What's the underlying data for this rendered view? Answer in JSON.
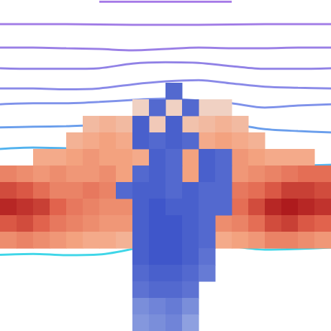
{
  "chart_data": {
    "type": "contour",
    "tick_labels": false,
    "grid": false,
    "xlim": [
      0,
      100
    ],
    "ylim": [
      0,
      100
    ],
    "x": [
      0,
      10,
      20,
      30,
      40,
      50,
      60,
      70,
      80,
      90,
      100
    ],
    "series": [
      {
        "color": "#a77ce8",
        "values": [
          null,
          null,
          null,
          99.5,
          99.5,
          99.5,
          99.5,
          99.5,
          null,
          null,
          null
        ]
      },
      {
        "color": "#a17ce6",
        "values": [
          92.7,
          92.7,
          92.7,
          92.6,
          92.5,
          92.5,
          92.5,
          92.6,
          92.7,
          92.7,
          92.7
        ]
      },
      {
        "color": "#9a7fe6",
        "values": [
          85.6,
          85.6,
          85.4,
          85.2,
          84.8,
          85.2,
          85.6,
          85.4,
          85.4,
          85.6,
          85.6
        ]
      },
      {
        "color": "#9182e6",
        "values": [
          79.4,
          79.2,
          79.2,
          79.4,
          80.8,
          81.2,
          81.0,
          80.0,
          79.2,
          79.2,
          79.4
        ]
      },
      {
        "color": "#8a8ae8",
        "values": [
          73.3,
          73.3,
          73.0,
          73.3,
          74.5,
          75.4,
          75.8,
          74.8,
          73.8,
          73.5,
          73.3
        ]
      },
      {
        "color": "#7f92ea",
        "values": [
          68.5,
          68.8,
          68.8,
          69.2,
          69.8,
          70.2,
          69.6,
          68.8,
          67.5,
          68.1,
          68.5
        ]
      },
      {
        "color": "#6a9eec",
        "values": [
          61.5,
          61.7,
          61.9,
          62.3,
          63.5,
          63.8,
          63.3,
          62.5,
          61.0,
          60.4,
          60.0
        ]
      },
      {
        "color": "#52b2ee",
        "values": [
          55.0,
          55.4,
          55.2,
          null,
          null,
          null,
          null,
          null,
          50.2,
          50.0,
          50.2
        ]
      },
      {
        "color": "#3cc4f0",
        "values": [
          47.5,
          47.0,
          null,
          null,
          null,
          null,
          null,
          null,
          null,
          null,
          null
        ]
      },
      {
        "color": "#3fd6e8",
        "values": [
          23.0,
          23.3,
          22.9,
          23.1,
          24.8,
          null,
          null,
          25.6,
          24.6,
          24.8,
          25.2
        ]
      }
    ],
    "cell_size": 5,
    "fields": [
      {
        "range": [
          0,
          1
        ],
        "colors": [
          "#efd9cf",
          "#f4a582",
          "#e0604a",
          "#a50f15"
        ],
        "cells": [
          [
            42.5,
            67.5,
            0.05
          ],
          [
            47.5,
            67.5,
            0.05
          ],
          [
            52.5,
            67.5,
            0.05
          ],
          [
            57.5,
            67.5,
            0.05
          ],
          [
            62.5,
            67.5,
            0.05
          ],
          [
            67.5,
            67.5,
            0.05
          ],
          [
            27.5,
            62.5,
            0.2
          ],
          [
            32.5,
            62.5,
            0.25
          ],
          [
            37.5,
            62.5,
            0.2
          ],
          [
            42.5,
            62.5,
            0.15
          ],
          [
            47.5,
            62.5,
            0.1
          ],
          [
            52.5,
            62.5,
            0.1
          ],
          [
            57.5,
            62.5,
            0.15
          ],
          [
            62.5,
            62.5,
            0.2
          ],
          [
            67.5,
            62.5,
            0.25
          ],
          [
            72.5,
            62.5,
            0.2
          ],
          [
            22.5,
            57.5,
            0.25
          ],
          [
            27.5,
            57.5,
            0.3
          ],
          [
            32.5,
            57.5,
            0.35
          ],
          [
            37.5,
            57.5,
            0.3
          ],
          [
            42.5,
            57.5,
            0.3
          ],
          [
            47.5,
            57.5,
            0.25
          ],
          [
            52.5,
            57.5,
            0.2
          ],
          [
            57.5,
            57.5,
            0.3
          ],
          [
            62.5,
            57.5,
            0.3
          ],
          [
            67.5,
            57.5,
            0.35
          ],
          [
            72.5,
            57.5,
            0.3
          ],
          [
            77.5,
            57.5,
            0.25
          ],
          [
            12.5,
            52.5,
            0.3
          ],
          [
            17.5,
            52.5,
            0.3
          ],
          [
            22.5,
            52.5,
            0.35
          ],
          [
            27.5,
            52.5,
            0.4
          ],
          [
            32.5,
            52.5,
            0.35
          ],
          [
            37.5,
            52.5,
            0.35
          ],
          [
            42.5,
            52.5,
            0.3
          ],
          [
            47.5,
            52.5,
            0.3
          ],
          [
            52.5,
            52.5,
            0.3
          ],
          [
            57.5,
            52.5,
            0.35
          ],
          [
            62.5,
            52.5,
            0.3
          ],
          [
            67.5,
            52.5,
            0.35
          ],
          [
            72.5,
            52.5,
            0.4
          ],
          [
            77.5,
            52.5,
            0.35
          ],
          [
            82.5,
            52.5,
            0.3
          ],
          [
            87.5,
            52.5,
            0.3
          ],
          [
            92.5,
            52.5,
            0.3
          ],
          [
            2.5,
            47.5,
            0.5
          ],
          [
            7.5,
            47.5,
            0.45
          ],
          [
            12.5,
            47.5,
            0.4
          ],
          [
            17.5,
            47.5,
            0.45
          ],
          [
            22.5,
            47.5,
            0.4
          ],
          [
            27.5,
            47.5,
            0.4
          ],
          [
            32.5,
            47.5,
            0.45
          ],
          [
            37.5,
            47.5,
            0.35
          ],
          [
            42.5,
            47.5,
            0.3
          ],
          [
            47.5,
            47.5,
            0.3
          ],
          [
            52.5,
            47.5,
            0.35
          ],
          [
            57.5,
            47.5,
            0.35
          ],
          [
            62.5,
            47.5,
            0.4
          ],
          [
            67.5,
            47.5,
            0.45
          ],
          [
            72.5,
            47.5,
            0.4
          ],
          [
            77.5,
            47.5,
            0.45
          ],
          [
            82.5,
            47.5,
            0.5
          ],
          [
            87.5,
            47.5,
            0.55
          ],
          [
            92.5,
            47.5,
            0.6
          ],
          [
            97.5,
            47.5,
            0.6
          ],
          [
            2.5,
            42.5,
            0.75
          ],
          [
            7.5,
            42.5,
            0.7
          ],
          [
            12.5,
            42.5,
            0.6
          ],
          [
            17.5,
            42.5,
            0.5
          ],
          [
            22.5,
            42.5,
            0.5
          ],
          [
            27.5,
            42.5,
            0.55
          ],
          [
            32.5,
            42.5,
            0.5
          ],
          [
            37.5,
            42.5,
            0.45
          ],
          [
            42.5,
            42.5,
            0.4
          ],
          [
            47.5,
            42.5,
            0.4
          ],
          [
            52.5,
            42.5,
            0.4
          ],
          [
            57.5,
            42.5,
            0.45
          ],
          [
            62.5,
            42.5,
            0.45
          ],
          [
            67.5,
            42.5,
            0.5
          ],
          [
            72.5,
            42.5,
            0.55
          ],
          [
            77.5,
            42.5,
            0.6
          ],
          [
            82.5,
            42.5,
            0.7
          ],
          [
            87.5,
            42.5,
            0.8
          ],
          [
            92.5,
            42.5,
            0.8
          ],
          [
            97.5,
            42.5,
            0.75
          ],
          [
            2.5,
            37.5,
            0.9
          ],
          [
            7.5,
            37.5,
            0.85
          ],
          [
            12.5,
            37.5,
            0.8
          ],
          [
            17.5,
            37.5,
            0.65
          ],
          [
            22.5,
            37.5,
            0.55
          ],
          [
            27.5,
            37.5,
            0.5
          ],
          [
            32.5,
            37.5,
            0.45
          ],
          [
            37.5,
            37.5,
            0.45
          ],
          [
            42.5,
            37.5,
            0.4
          ],
          [
            47.5,
            37.5,
            0.4
          ],
          [
            52.5,
            37.5,
            0.4
          ],
          [
            57.5,
            37.5,
            0.4
          ],
          [
            62.5,
            37.5,
            0.45
          ],
          [
            67.5,
            37.5,
            0.5
          ],
          [
            72.5,
            37.5,
            0.6
          ],
          [
            77.5,
            37.5,
            0.75
          ],
          [
            82.5,
            37.5,
            0.9
          ],
          [
            87.5,
            37.5,
            0.95
          ],
          [
            92.5,
            37.5,
            0.9
          ],
          [
            97.5,
            37.5,
            0.85
          ],
          [
            2.5,
            32.5,
            0.7
          ],
          [
            7.5,
            32.5,
            0.75
          ],
          [
            12.5,
            32.5,
            0.65
          ],
          [
            17.5,
            32.5,
            0.55
          ],
          [
            22.5,
            32.5,
            0.5
          ],
          [
            27.5,
            32.5,
            0.45
          ],
          [
            32.5,
            32.5,
            0.4
          ],
          [
            37.5,
            32.5,
            0.4
          ],
          [
            42.5,
            32.5,
            0.35
          ],
          [
            47.5,
            32.5,
            0.35
          ],
          [
            52.5,
            32.5,
            0.35
          ],
          [
            57.5,
            32.5,
            0.35
          ],
          [
            62.5,
            32.5,
            0.4
          ],
          [
            67.5,
            32.5,
            0.45
          ],
          [
            72.5,
            32.5,
            0.5
          ],
          [
            77.5,
            32.5,
            0.6
          ],
          [
            82.5,
            32.5,
            0.75
          ],
          [
            87.5,
            32.5,
            0.8
          ],
          [
            92.5,
            32.5,
            0.7
          ],
          [
            97.5,
            32.5,
            0.65
          ],
          [
            2.5,
            27.5,
            0.45
          ],
          [
            7.5,
            27.5,
            0.5
          ],
          [
            12.5,
            27.5,
            0.45
          ],
          [
            17.5,
            27.5,
            0.4
          ],
          [
            22.5,
            27.5,
            0.35
          ],
          [
            27.5,
            27.5,
            0.3
          ],
          [
            32.5,
            27.5,
            0.3
          ],
          [
            37.5,
            27.5,
            0.25
          ],
          [
            42.5,
            27.5,
            0.25
          ],
          [
            47.5,
            27.5,
            0.25
          ],
          [
            52.5,
            27.5,
            0.25
          ],
          [
            57.5,
            27.5,
            0.25
          ],
          [
            62.5,
            27.5,
            0.3
          ],
          [
            67.5,
            27.5,
            0.3
          ],
          [
            72.5,
            27.5,
            0.35
          ],
          [
            77.5,
            27.5,
            0.4
          ],
          [
            82.5,
            27.5,
            0.5
          ],
          [
            87.5,
            27.5,
            0.5
          ],
          [
            92.5,
            27.5,
            0.45
          ],
          [
            97.5,
            27.5,
            0.4
          ]
        ]
      },
      {
        "range": [
          0,
          1
        ],
        "colors": [
          "#dde3f7",
          "#8ea0e0",
          "#2b44c4"
        ],
        "cells": [
          [
            52.5,
            72.5,
            0.8
          ],
          [
            47.5,
            67.5,
            0.8
          ],
          [
            57.5,
            67.5,
            0.8
          ],
          [
            42.5,
            62.5,
            0.85
          ],
          [
            52.5,
            62.5,
            0.85
          ],
          [
            42.5,
            57.5,
            0.85
          ],
          [
            47.5,
            57.5,
            0.8
          ],
          [
            52.5,
            57.5,
            0.85
          ],
          [
            57.5,
            57.5,
            0.8
          ],
          [
            47.5,
            52.5,
            0.85
          ],
          [
            52.5,
            52.5,
            0.8
          ],
          [
            62.5,
            52.5,
            0.85
          ],
          [
            67.5,
            52.5,
            0.8
          ],
          [
            42.5,
            47.5,
            0.8
          ],
          [
            47.5,
            47.5,
            0.85
          ],
          [
            52.5,
            47.5,
            0.8
          ],
          [
            62.5,
            47.5,
            0.85
          ],
          [
            67.5,
            47.5,
            0.8
          ],
          [
            37.5,
            42.5,
            0.8
          ],
          [
            42.5,
            42.5,
            0.85
          ],
          [
            47.5,
            42.5,
            0.85
          ],
          [
            52.5,
            42.5,
            0.8
          ],
          [
            57.5,
            42.5,
            0.85
          ],
          [
            62.5,
            42.5,
            0.8
          ],
          [
            67.5,
            42.5,
            0.8
          ],
          [
            42.5,
            37.5,
            0.85
          ],
          [
            47.5,
            37.5,
            0.9
          ],
          [
            52.5,
            37.5,
            0.85
          ],
          [
            57.5,
            37.5,
            0.85
          ],
          [
            62.5,
            37.5,
            0.8
          ],
          [
            67.5,
            37.5,
            0.8
          ],
          [
            42.5,
            32.5,
            0.85
          ],
          [
            47.5,
            32.5,
            0.9
          ],
          [
            52.5,
            32.5,
            0.9
          ],
          [
            57.5,
            32.5,
            0.85
          ],
          [
            62.5,
            32.5,
            0.8
          ],
          [
            42.5,
            27.5,
            0.85
          ],
          [
            47.5,
            27.5,
            0.9
          ],
          [
            52.5,
            27.5,
            0.9
          ],
          [
            57.5,
            27.5,
            0.85
          ],
          [
            62.5,
            27.5,
            0.8
          ],
          [
            42.5,
            22.5,
            0.85
          ],
          [
            47.5,
            22.5,
            0.9
          ],
          [
            52.5,
            22.5,
            0.9
          ],
          [
            57.5,
            22.5,
            0.85
          ],
          [
            62.5,
            22.5,
            0.75
          ],
          [
            42.5,
            17.5,
            0.8
          ],
          [
            47.5,
            17.5,
            0.85
          ],
          [
            52.5,
            17.5,
            0.85
          ],
          [
            57.5,
            17.5,
            0.8
          ],
          [
            62.5,
            17.5,
            0.7
          ],
          [
            42.5,
            12.5,
            0.75
          ],
          [
            47.5,
            12.5,
            0.8
          ],
          [
            52.5,
            12.5,
            0.8
          ],
          [
            57.5,
            12.5,
            0.75
          ],
          [
            42.5,
            7.5,
            0.6
          ],
          [
            47.5,
            7.5,
            0.65
          ],
          [
            52.5,
            7.5,
            0.7
          ],
          [
            57.5,
            7.5,
            0.6
          ],
          [
            42.5,
            2.5,
            0.55
          ],
          [
            47.5,
            2.5,
            0.6
          ],
          [
            52.5,
            2.5,
            0.65
          ],
          [
            57.5,
            2.5,
            0.5
          ]
        ]
      }
    ]
  }
}
